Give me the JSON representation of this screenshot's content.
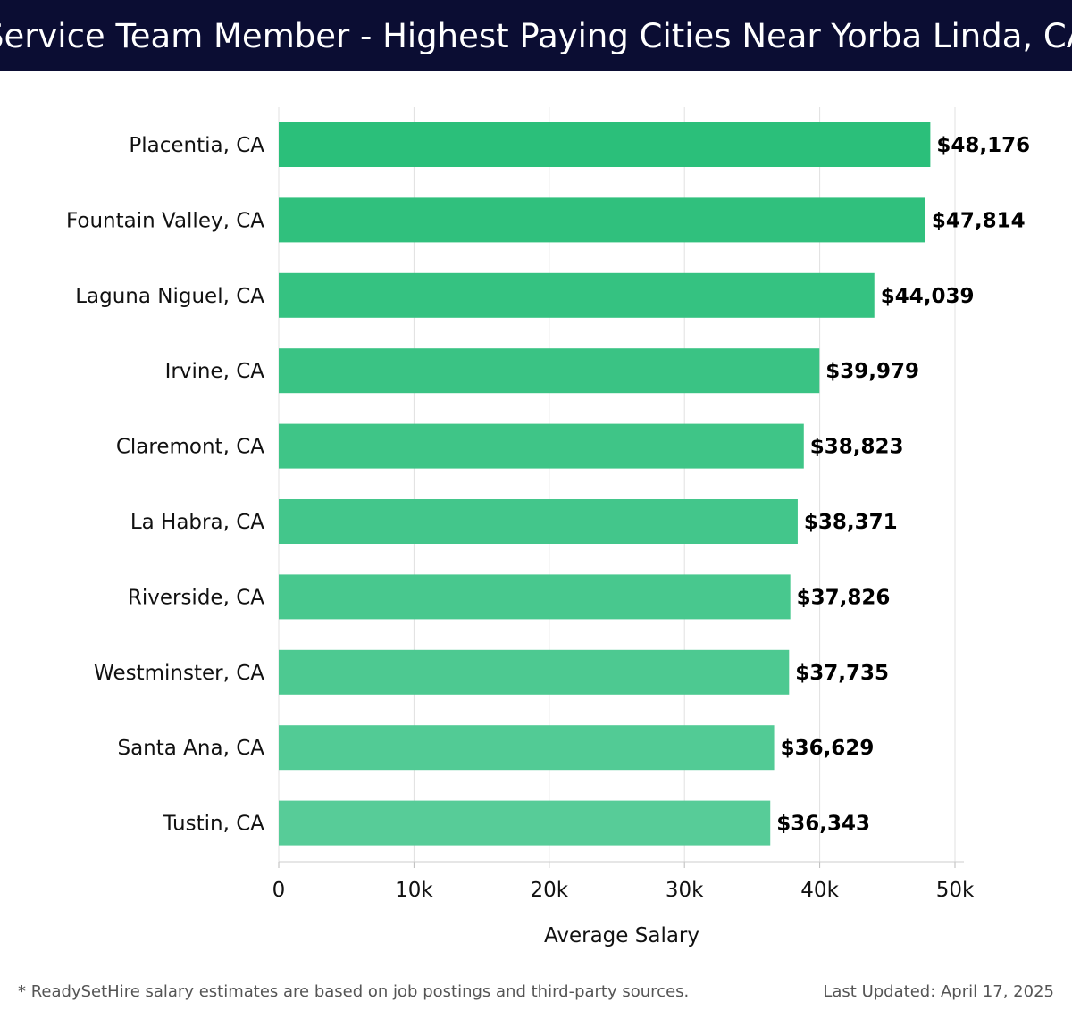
{
  "colors": {
    "header_bg": "#0b0d33",
    "bar_top": "#2bbf7a",
    "bar_bottom": "#57cc98",
    "grid": "#e0e0e0",
    "label": "#111111"
  },
  "chart_data": {
    "type": "bar",
    "orientation": "horizontal",
    "title": "Service Team Member - Highest Paying Cities Near Yorba Linda, CA",
    "xlabel": "Average Salary",
    "ylabel": "",
    "categories": [
      "Placentia, CA",
      "Fountain Valley, CA",
      "Laguna Niguel, CA",
      "Irvine, CA",
      "Claremont, CA",
      "La Habra, CA",
      "Riverside, CA",
      "Westminster, CA",
      "Santa Ana, CA",
      "Tustin, CA"
    ],
    "values": [
      48176,
      47814,
      44039,
      39979,
      38823,
      38371,
      37826,
      37735,
      36629,
      36343
    ],
    "data_labels": [
      "$48,176",
      "$47,814",
      "$44,039",
      "$39,979",
      "$38,823",
      "$38,371",
      "$37,826",
      "$37,735",
      "$36,629",
      "$36,343"
    ],
    "xlim": [
      0,
      50000
    ],
    "x_ticks": [
      0,
      10000,
      20000,
      30000,
      40000,
      50000
    ],
    "x_tick_labels": [
      "0",
      "10k",
      "20k",
      "30k",
      "40k",
      "50k"
    ],
    "grid": true,
    "legend": "none"
  },
  "footer": {
    "note": "* ReadySetHire salary estimates are based on job postings and third-party sources.",
    "updated": "Last Updated: April 17, 2025"
  }
}
